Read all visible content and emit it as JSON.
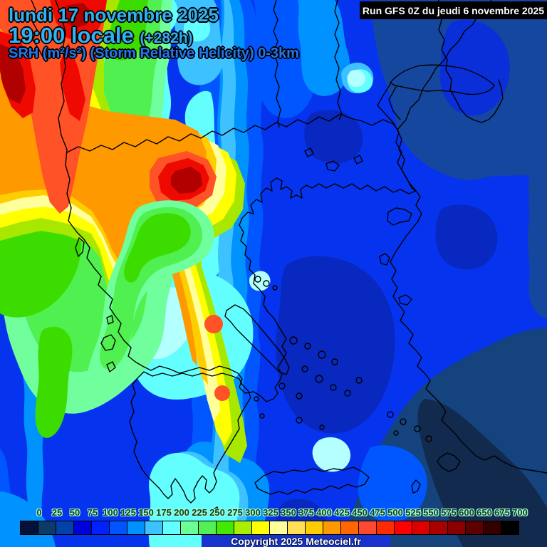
{
  "header": {
    "date_line": "lundi 17 novembre 2025",
    "time_line": "19:00 locale",
    "run_offset": "(+282h)",
    "parameter_line": "SRH (m²/s²) (Storm Relative Helicity) 0-3km"
  },
  "run_info": {
    "label": "Run GFS 0Z du jeudi 6 novembre 2025"
  },
  "footer": {
    "copyright": "Copyright 2025 Meteociel.fr"
  },
  "colors": {
    "header_text": "#31b0f2",
    "parameter_text": "#2277ee",
    "run_box_bg": "#000000",
    "run_box_text": "#ffffff",
    "copyright_bg": "#1733cf",
    "copyright_text": "#ffffff",
    "scale_label_text": "#0d3a2a",
    "scale_label_halo": "#aaffcc"
  },
  "scale": {
    "unit": "m²/s²",
    "labels": [
      "0",
      "25",
      "50",
      "75",
      "100",
      "125",
      "150",
      "175",
      "200",
      "225",
      "250",
      "275",
      "300",
      "325",
      "350",
      "375",
      "400",
      "425",
      "450",
      "475",
      "500",
      "525",
      "550",
      "575",
      "600",
      "650",
      "675",
      "700"
    ],
    "cell_colors": [
      "#051137",
      "#0d3a66",
      "#0042a8",
      "#0000dd",
      "#0022ff",
      "#0055ff",
      "#0092ff",
      "#3ec1ff",
      "#63ffff",
      "#6cff96",
      "#55f055",
      "#44e800",
      "#aaee00",
      "#ffff00",
      "#ffff99",
      "#ffe055",
      "#ffcc00",
      "#ff9900",
      "#ff6600",
      "#ff4830",
      "#ff2a00",
      "#ff0000",
      "#dd0000",
      "#aa0000",
      "#880000",
      "#5c0000",
      "#330000",
      "#000000"
    ]
  }
}
